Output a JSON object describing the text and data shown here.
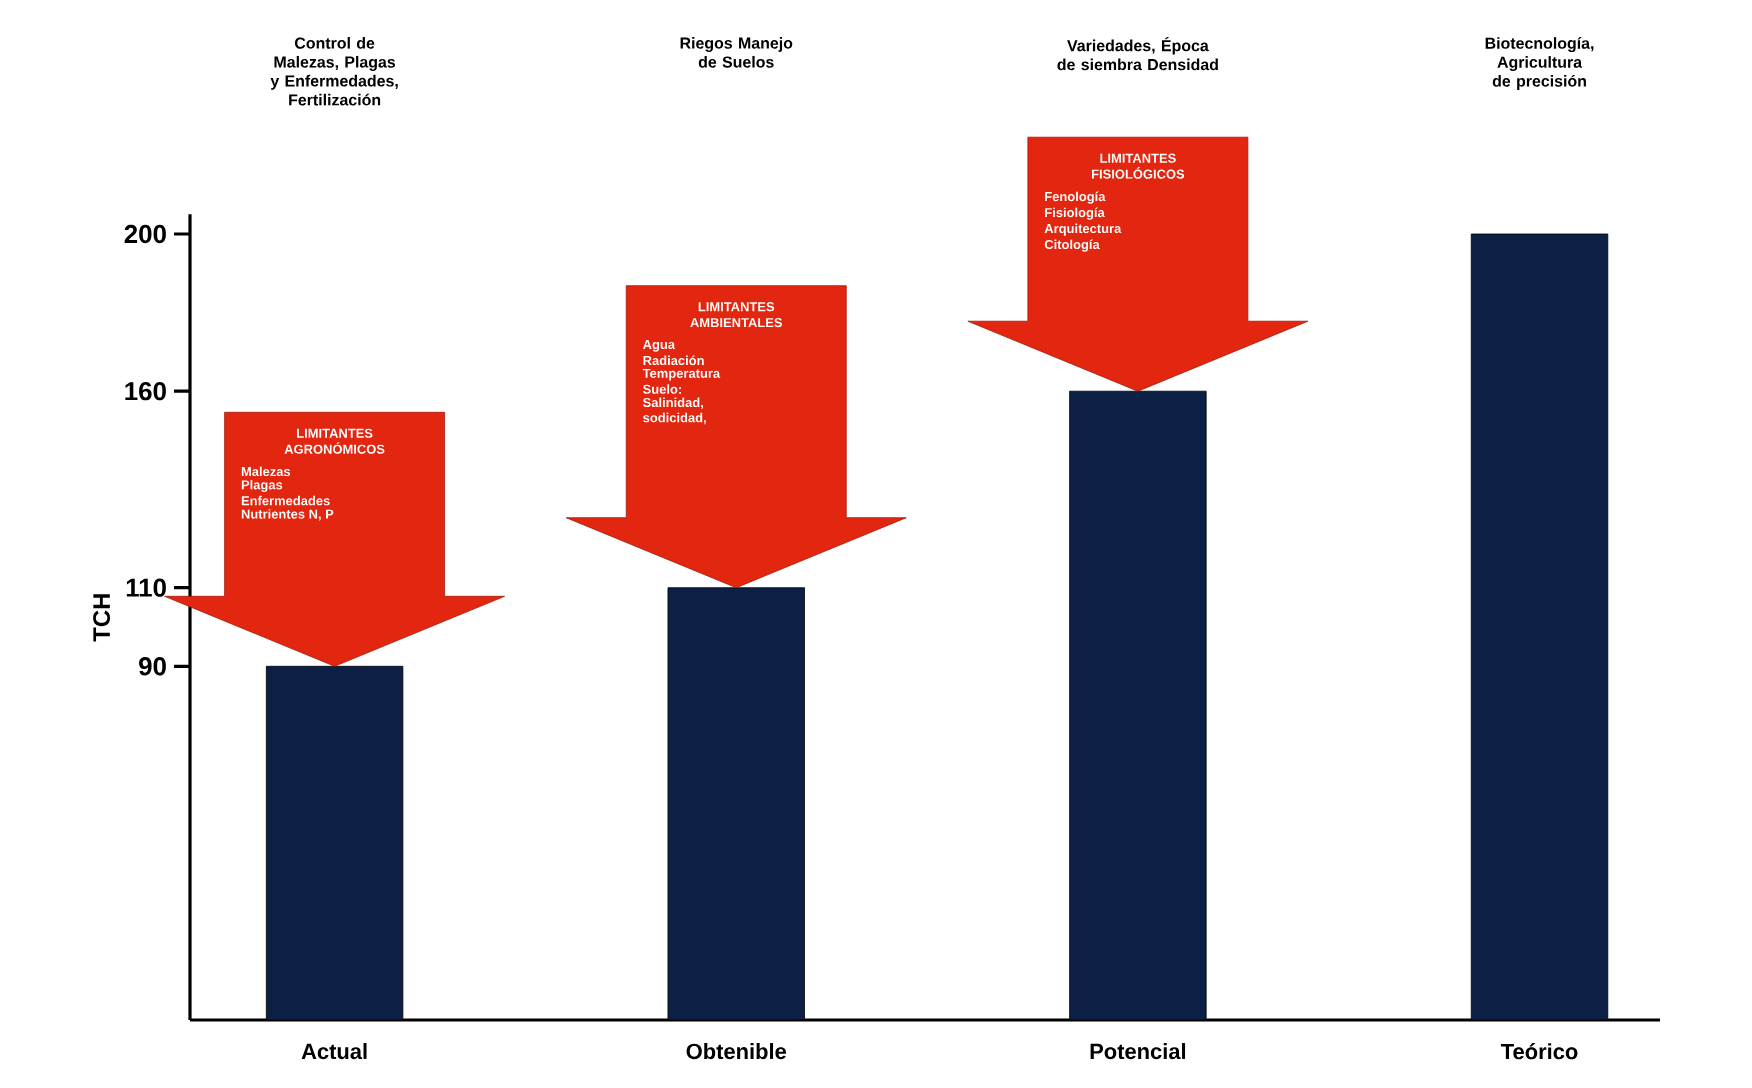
{
  "chart_data": {
    "type": "bar",
    "categories": [
      "Actual",
      "Obtenible",
      "Potencial",
      "Teórico"
    ],
    "values": [
      90,
      110,
      160,
      200
    ],
    "color": "#0c1f44",
    "ylabel": "TCH",
    "ylim": [
      0,
      205
    ],
    "yticks": [
      90,
      110,
      160,
      200
    ],
    "annotations": [
      "Control de Malezas, Plagas y Enfermedades, Fertilización",
      "Riegos Manejo de Suelos",
      "Variedades, Época de siembra Densidad",
      "Biotecnología, Agricultura de precisión",
      "LIMITANTES AGRONÓMICOS",
      "Malezas",
      "Plagas",
      "Enfermedades",
      "Nutrientes N, P",
      "LIMITANTES AMBIENTALES",
      "Agua",
      "Radiación",
      "Temperatura",
      "Suelo:",
      "Salinidad,",
      "sodicidad,",
      "LIMITANTES FISIOLÓGICOS",
      "Fenología",
      "Fisiología",
      "Arquitectura",
      "Citología"
    ]
  }
}
